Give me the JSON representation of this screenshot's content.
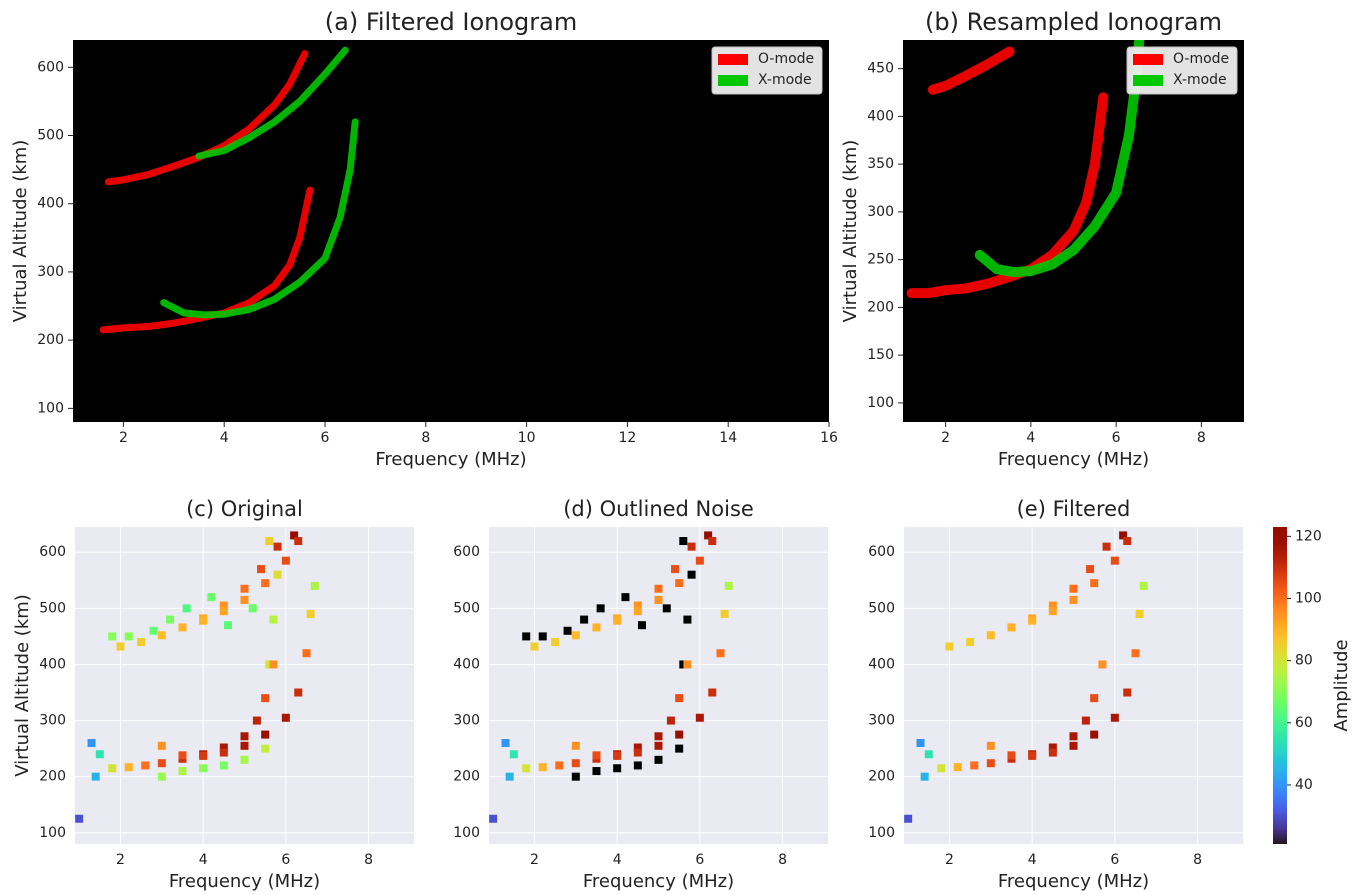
{
  "chart_data": [
    {
      "type": "line",
      "title": "(a) Filtered Ionogram",
      "x_label": "Frequency (MHz)",
      "y_label": "Virtual Altitude (km)",
      "xlim": [
        1,
        16
      ],
      "ylim": [
        80,
        640
      ],
      "xticks": [
        2,
        4,
        6,
        8,
        10,
        12,
        14,
        16
      ],
      "yticks": [
        100,
        200,
        300,
        400,
        500,
        600
      ],
      "background": "#000000",
      "grid": false,
      "legend": "upper right",
      "series": [
        {
          "name": "O-mode",
          "color": "#ff0000",
          "x": [
            1.6,
            2,
            2.5,
            3,
            3.5,
            4,
            4.5,
            5,
            5.3,
            5.5,
            5.7,
            null,
            1.7,
            2,
            2.5,
            3,
            3.5,
            4,
            4.5,
            5,
            5.3,
            5.6
          ],
          "y": [
            215,
            218,
            220,
            225,
            232,
            240,
            255,
            280,
            310,
            350,
            420,
            null,
            432,
            435,
            443,
            455,
            468,
            485,
            510,
            545,
            575,
            620
          ]
        },
        {
          "name": "X-mode",
          "color": "#00c800",
          "x": [
            2.8,
            3.2,
            3.6,
            4,
            4.5,
            5,
            5.5,
            6,
            6.3,
            6.5,
            6.6,
            null,
            3.5,
            4,
            4.5,
            5,
            5.5,
            6,
            6.4
          ],
          "y": [
            255,
            240,
            237,
            238,
            245,
            260,
            285,
            320,
            380,
            450,
            520,
            null,
            470,
            478,
            497,
            520,
            550,
            590,
            625
          ]
        }
      ]
    },
    {
      "type": "line",
      "title": "(b) Resampled Ionogram",
      "x_label": "Frequency (MHz)",
      "y_label": "Virtual Altitude (km)",
      "xlim": [
        1,
        9
      ],
      "ylim": [
        80,
        480
      ],
      "xticks": [
        2,
        4,
        6,
        8
      ],
      "yticks": [
        100,
        150,
        200,
        250,
        300,
        350,
        400,
        450
      ],
      "background": "#000000",
      "grid": false,
      "legend": "upper right",
      "series": [
        {
          "name": "O-mode",
          "color": "#ff0000",
          "x": [
            1.2,
            1.6,
            2,
            2.5,
            3,
            3.5,
            4,
            4.5,
            5,
            5.3,
            5.5,
            5.7,
            null,
            1.7,
            2,
            2.5,
            3,
            3.5
          ],
          "y": [
            215,
            215,
            218,
            220,
            225,
            232,
            240,
            255,
            280,
            310,
            350,
            420,
            null,
            428,
            432,
            443,
            455,
            468
          ]
        },
        {
          "name": "X-mode",
          "color": "#00c800",
          "x": [
            2.8,
            3.2,
            3.6,
            4,
            4.5,
            5,
            5.5,
            6,
            6.3,
            6.5,
            6.6
          ],
          "y": [
            255,
            240,
            237,
            238,
            245,
            260,
            285,
            320,
            380,
            450,
            520
          ]
        }
      ]
    },
    {
      "type": "scatter",
      "title": "(c) Original",
      "x_label": "Frequency (MHz)",
      "y_label": "Virtual Altitude (km)",
      "xlim": [
        0.9,
        9.1
      ],
      "ylim": [
        80,
        645
      ],
      "xticks": [
        2,
        4,
        6,
        8
      ],
      "yticks": [
        100,
        200,
        300,
        400,
        500,
        600
      ],
      "background": "#eaeaf2",
      "grid": true,
      "colormap": "turbo",
      "clim": [
        21,
        123
      ],
      "series": [
        {
          "x": [
            2.2,
            2.8,
            3.2,
            3.6,
            4.2,
            3,
            3.5,
            4,
            4.5,
            5,
            5.5,
            5.6,
            5.7,
            5.8,
            5.6,
            1.8,
            4.6,
            5.2
          ],
          "y": [
            450,
            460,
            480,
            500,
            520,
            200,
            210,
            215,
            220,
            230,
            250,
            400,
            480,
            560,
            620,
            450,
            470,
            500
          ],
          "values": [
            70,
            65,
            68,
            62,
            66,
            72,
            75,
            70,
            68,
            74,
            78,
            80,
            76,
            82,
            85,
            70,
            64,
            66
          ]
        },
        {
          "x": [
            1.8,
            2.2,
            2.6,
            3,
            3.5,
            4,
            4.5,
            5,
            5.3,
            5.5,
            5.7,
            2,
            2.5,
            3,
            3.5,
            4,
            4.5,
            5,
            5.4,
            5.8,
            6.2,
            3,
            3.5,
            4,
            4.5,
            5,
            5.5,
            6,
            6.3,
            6.5,
            6.6,
            6.7,
            4,
            4.5,
            5,
            5.5,
            6,
            6.3,
            1.3,
            1.4,
            1.0,
            1.5
          ],
          "y": [
            215,
            217,
            220,
            224,
            232,
            240,
            252,
            272,
            300,
            340,
            400,
            432,
            440,
            452,
            466,
            482,
            505,
            535,
            570,
            610,
            630,
            255,
            238,
            237,
            243,
            255,
            275,
            305,
            350,
            420,
            490,
            540,
            478,
            495,
            515,
            545,
            585,
            620,
            260,
            200,
            125,
            240
          ],
          "values": [
            80,
            90,
            100,
            105,
            110,
            112,
            115,
            115,
            112,
            105,
            95,
            85,
            85,
            88,
            90,
            92,
            95,
            100,
            105,
            110,
            120,
            95,
            105,
            108,
            110,
            115,
            118,
            115,
            110,
            100,
            85,
            75,
            90,
            92,
            95,
            100,
            105,
            110,
            40,
            45,
            30,
            55
          ]
        }
      ]
    },
    {
      "type": "scatter",
      "title": "(d) Outlined Noise",
      "x_label": "Frequency (MHz)",
      "xlim": [
        0.9,
        9.1
      ],
      "ylim": [
        80,
        645
      ],
      "xticks": [
        2,
        4,
        6,
        8
      ],
      "yticks": [
        100,
        200,
        300,
        400,
        500,
        600
      ],
      "background": "#eaeaf2",
      "grid": true,
      "colormap": "turbo",
      "clim": [
        21,
        123
      ],
      "series": [
        {
          "color": "#000000",
          "x": [
            2.2,
            2.8,
            3.2,
            3.6,
            4.2,
            3,
            3.5,
            4,
            4.5,
            5,
            5.5,
            5.6,
            5.7,
            5.8,
            5.6,
            1.8,
            4.6,
            5.2
          ],
          "y": [
            450,
            460,
            480,
            500,
            520,
            200,
            210,
            215,
            220,
            230,
            250,
            400,
            480,
            560,
            620,
            450,
            470,
            500
          ]
        },
        {
          "x": [
            1.8,
            2.2,
            2.6,
            3,
            3.5,
            4,
            4.5,
            5,
            5.3,
            5.5,
            5.7,
            2,
            2.5,
            3,
            3.5,
            4,
            4.5,
            5,
            5.4,
            5.8,
            6.2,
            3,
            3.5,
            4,
            4.5,
            5,
            5.5,
            6,
            6.3,
            6.5,
            6.6,
            6.7,
            4,
            4.5,
            5,
            5.5,
            6,
            6.3,
            1.3,
            1.4,
            1.0,
            1.5
          ],
          "y": [
            215,
            217,
            220,
            224,
            232,
            240,
            252,
            272,
            300,
            340,
            400,
            432,
            440,
            452,
            466,
            482,
            505,
            535,
            570,
            610,
            630,
            255,
            238,
            237,
            243,
            255,
            275,
            305,
            350,
            420,
            490,
            540,
            478,
            495,
            515,
            545,
            585,
            620,
            260,
            200,
            125,
            240
          ],
          "values": [
            80,
            90,
            100,
            105,
            110,
            112,
            115,
            115,
            112,
            105,
            95,
            85,
            85,
            88,
            90,
            92,
            95,
            100,
            105,
            110,
            120,
            95,
            105,
            108,
            110,
            115,
            118,
            115,
            110,
            100,
            85,
            75,
            90,
            92,
            95,
            100,
            105,
            110,
            40,
            45,
            30,
            55
          ]
        }
      ]
    },
    {
      "type": "scatter",
      "title": "(e) Filtered",
      "x_label": "Frequency (MHz)",
      "xlim": [
        0.9,
        9.1
      ],
      "ylim": [
        80,
        645
      ],
      "xticks": [
        2,
        4,
        6,
        8
      ],
      "yticks": [
        100,
        200,
        300,
        400,
        500,
        600
      ],
      "background": "#eaeaf2",
      "grid": true,
      "colormap": "turbo",
      "clim": [
        21,
        123
      ],
      "colorbar": {
        "label": "Amplitude",
        "ticks": [
          40,
          60,
          80,
          100,
          120
        ]
      },
      "series": [
        {
          "x": [
            1.8,
            2.2,
            2.6,
            3,
            3.5,
            4,
            4.5,
            5,
            5.3,
            5.5,
            5.7,
            2,
            2.5,
            3,
            3.5,
            4,
            4.5,
            5,
            5.4,
            5.8,
            6.2,
            3,
            3.5,
            4,
            4.5,
            5,
            5.5,
            6,
            6.3,
            6.5,
            6.6,
            6.7,
            4,
            4.5,
            5,
            5.5,
            6,
            6.3,
            1.3,
            1.4,
            1.0,
            1.5
          ],
          "y": [
            215,
            217,
            220,
            224,
            232,
            240,
            252,
            272,
            300,
            340,
            400,
            432,
            440,
            452,
            466,
            482,
            505,
            535,
            570,
            610,
            630,
            255,
            238,
            237,
            243,
            255,
            275,
            305,
            350,
            420,
            490,
            540,
            478,
            495,
            515,
            545,
            585,
            620,
            260,
            200,
            125,
            240
          ],
          "values": [
            80,
            90,
            100,
            105,
            110,
            112,
            115,
            115,
            112,
            105,
            95,
            85,
            85,
            88,
            90,
            92,
            95,
            100,
            105,
            110,
            120,
            95,
            105,
            108,
            110,
            115,
            118,
            115,
            110,
            100,
            85,
            75,
            90,
            92,
            95,
            100,
            105,
            110,
            40,
            45,
            30,
            55
          ]
        }
      ]
    }
  ]
}
